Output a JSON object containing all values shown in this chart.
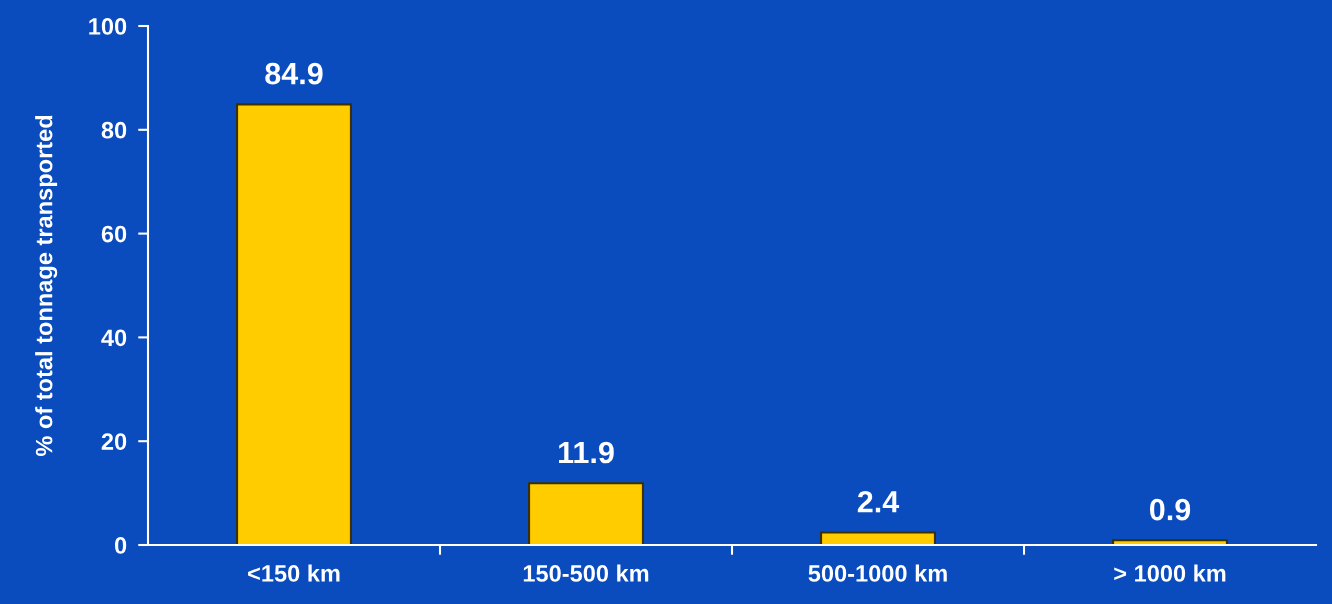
{
  "chart_data": {
    "type": "bar",
    "ylabel": "% of total tonnage transported",
    "categories": [
      "<150 km",
      "150-500 km",
      "500-1000 km",
      "> 1000 km"
    ],
    "values": [
      84.9,
      11.9,
      2.4,
      0.9
    ],
    "color": "#ffcc00",
    "ylim": [
      0,
      100
    ],
    "yticks": [
      0,
      20,
      40,
      60,
      80,
      100
    ],
    "grid": false,
    "data_labels": true
  }
}
